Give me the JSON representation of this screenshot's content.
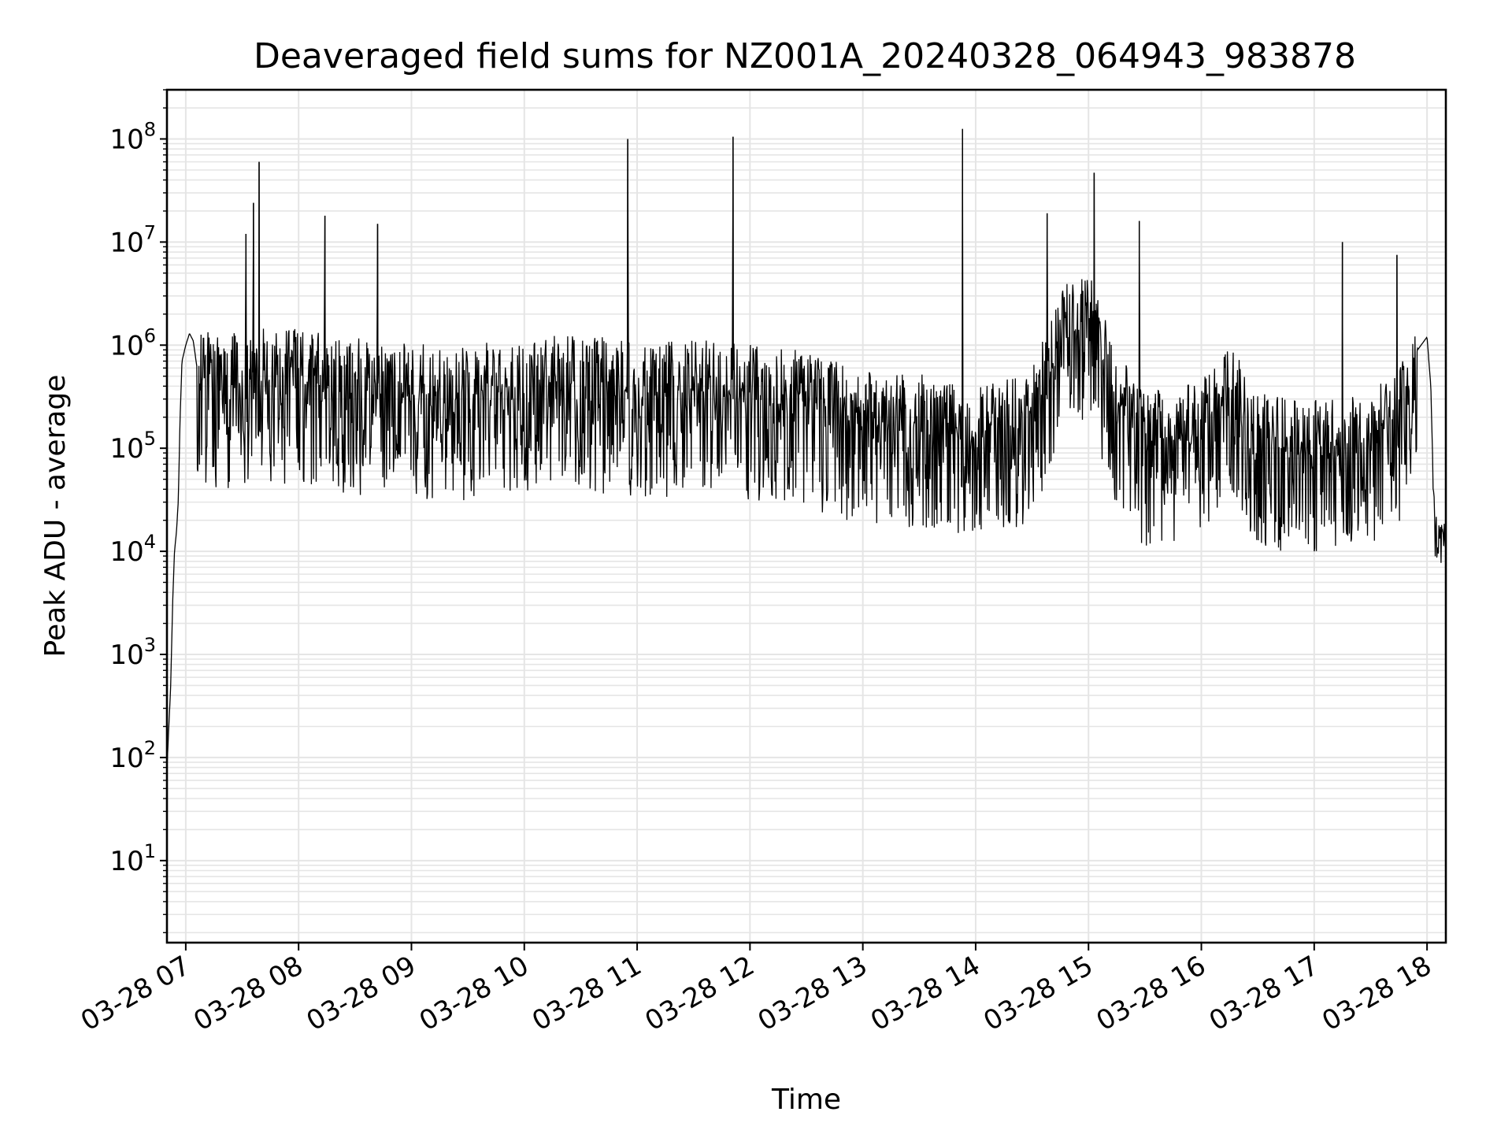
{
  "chart_data": {
    "type": "line",
    "title": "Deaveraged field sums for NZ001A_20240328_064943_983878",
    "xlabel": "Time",
    "ylabel": "Peak ADU - average",
    "yscale": "log",
    "ylim": [
      1.6,
      300000000
    ],
    "xlim": [
      "2024-03-28T06:50:00",
      "2024-03-28T18:10:00"
    ],
    "grid": true,
    "line_color": "#000000",
    "grid_color": "#e5e5e5",
    "x_ticks": [
      "03-28 07",
      "03-28 08",
      "03-28 09",
      "03-28 10",
      "03-28 11",
      "03-28 12",
      "03-28 13",
      "03-28 14",
      "03-28 15",
      "03-28 16",
      "03-28 17",
      "03-28 18"
    ],
    "x_tick_times": [
      "2024-03-28T07:00:00",
      "2024-03-28T08:00:00",
      "2024-03-28T09:00:00",
      "2024-03-28T10:00:00",
      "2024-03-28T11:00:00",
      "2024-03-28T12:00:00",
      "2024-03-28T13:00:00",
      "2024-03-28T14:00:00",
      "2024-03-28T15:00:00",
      "2024-03-28T16:00:00",
      "2024-03-28T17:00:00",
      "2024-03-28T18:00:00"
    ],
    "y_ticks": [
      {
        "value": 10,
        "base": "10",
        "exp": "1"
      },
      {
        "value": 100,
        "base": "10",
        "exp": "2"
      },
      {
        "value": 1000,
        "base": "10",
        "exp": "3"
      },
      {
        "value": 10000,
        "base": "10",
        "exp": "4"
      },
      {
        "value": 100000,
        "base": "10",
        "exp": "5"
      },
      {
        "value": 1000000,
        "base": "10",
        "exp": "6"
      },
      {
        "value": 10000000,
        "base": "10",
        "exp": "7"
      },
      {
        "value": 100000000,
        "base": "10",
        "exp": "8"
      }
    ],
    "series": [
      {
        "x": [
          "2024-03-28T06:50:00",
          "2024-03-28T06:52:00",
          "2024-03-28T06:53:00",
          "2024-03-28T06:54:00",
          "2024-03-28T06:55:00",
          "2024-03-28T06:56:00",
          "2024-03-28T06:57:00",
          "2024-03-28T06:58:00",
          "2024-03-28T07:00:00",
          "2024-03-28T07:02:00",
          "2024-03-28T07:04:00",
          "2024-03-28T07:06:00",
          "2024-03-28T07:10:00",
          "2024-03-28T07:20:00",
          "2024-03-28T07:35:00",
          "2024-03-28T07:55:00",
          "2024-03-28T08:10:00",
          "2024-03-28T08:30:00",
          "2024-03-28T09:00:00",
          "2024-03-28T09:30:00",
          "2024-03-28T10:00:00",
          "2024-03-28T10:30:00",
          "2024-03-28T11:00:00",
          "2024-03-28T11:30:00",
          "2024-03-28T12:00:00",
          "2024-03-28T12:30:00",
          "2024-03-28T13:00:00",
          "2024-03-28T13:30:00",
          "2024-03-28T14:00:00",
          "2024-03-28T14:30:00",
          "2024-03-28T14:45:00",
          "2024-03-28T15:00:00",
          "2024-03-28T15:15:00",
          "2024-03-28T15:30:00",
          "2024-03-28T16:00:00",
          "2024-03-28T16:15:00",
          "2024-03-28T16:30:00",
          "2024-03-28T17:00:00",
          "2024-03-28T17:30:00",
          "2024-03-28T17:45:00",
          "2024-03-28T17:55:00",
          "2024-03-28T18:00:00",
          "2024-03-28T18:02:00",
          "2024-03-28T18:04:00",
          "2024-03-28T18:07:00",
          "2024-03-28T18:10:00"
        ],
        "y": [
          80,
          500,
          3000,
          10000,
          15000,
          30000,
          200000,
          700000,
          1000000,
          1300000,
          1100000,
          600000,
          500000,
          400000,
          550000,
          500000,
          450000,
          400000,
          350000,
          350000,
          400000,
          450000,
          350000,
          400000,
          350000,
          300000,
          200000,
          180000,
          130000,
          200000,
          1200000,
          2000000,
          300000,
          120000,
          150000,
          400000,
          120000,
          100000,
          130000,
          200000,
          900000,
          1200000,
          400000,
          15000,
          12000,
          15000
        ]
      }
    ],
    "spikes": [
      {
        "x": "2024-03-28T07:39:00",
        "y": 60000000
      },
      {
        "x": "2024-03-28T07:36:00",
        "y": 24000000
      },
      {
        "x": "2024-03-28T07:32:00",
        "y": 12000000
      },
      {
        "x": "2024-03-28T08:14:00",
        "y": 18000000
      },
      {
        "x": "2024-03-28T08:42:00",
        "y": 15000000
      },
      {
        "x": "2024-03-28T10:55:00",
        "y": 100000000
      },
      {
        "x": "2024-03-28T11:51:00",
        "y": 105000000
      },
      {
        "x": "2024-03-28T13:53:00",
        "y": 125000000
      },
      {
        "x": "2024-03-28T14:38:00",
        "y": 19000000
      },
      {
        "x": "2024-03-28T15:03:00",
        "y": 47000000
      },
      {
        "x": "2024-03-28T15:27:00",
        "y": 16000000
      },
      {
        "x": "2024-03-28T17:15:00",
        "y": 10000000
      },
      {
        "x": "2024-03-28T17:44:00",
        "y": 7500000
      }
    ]
  }
}
